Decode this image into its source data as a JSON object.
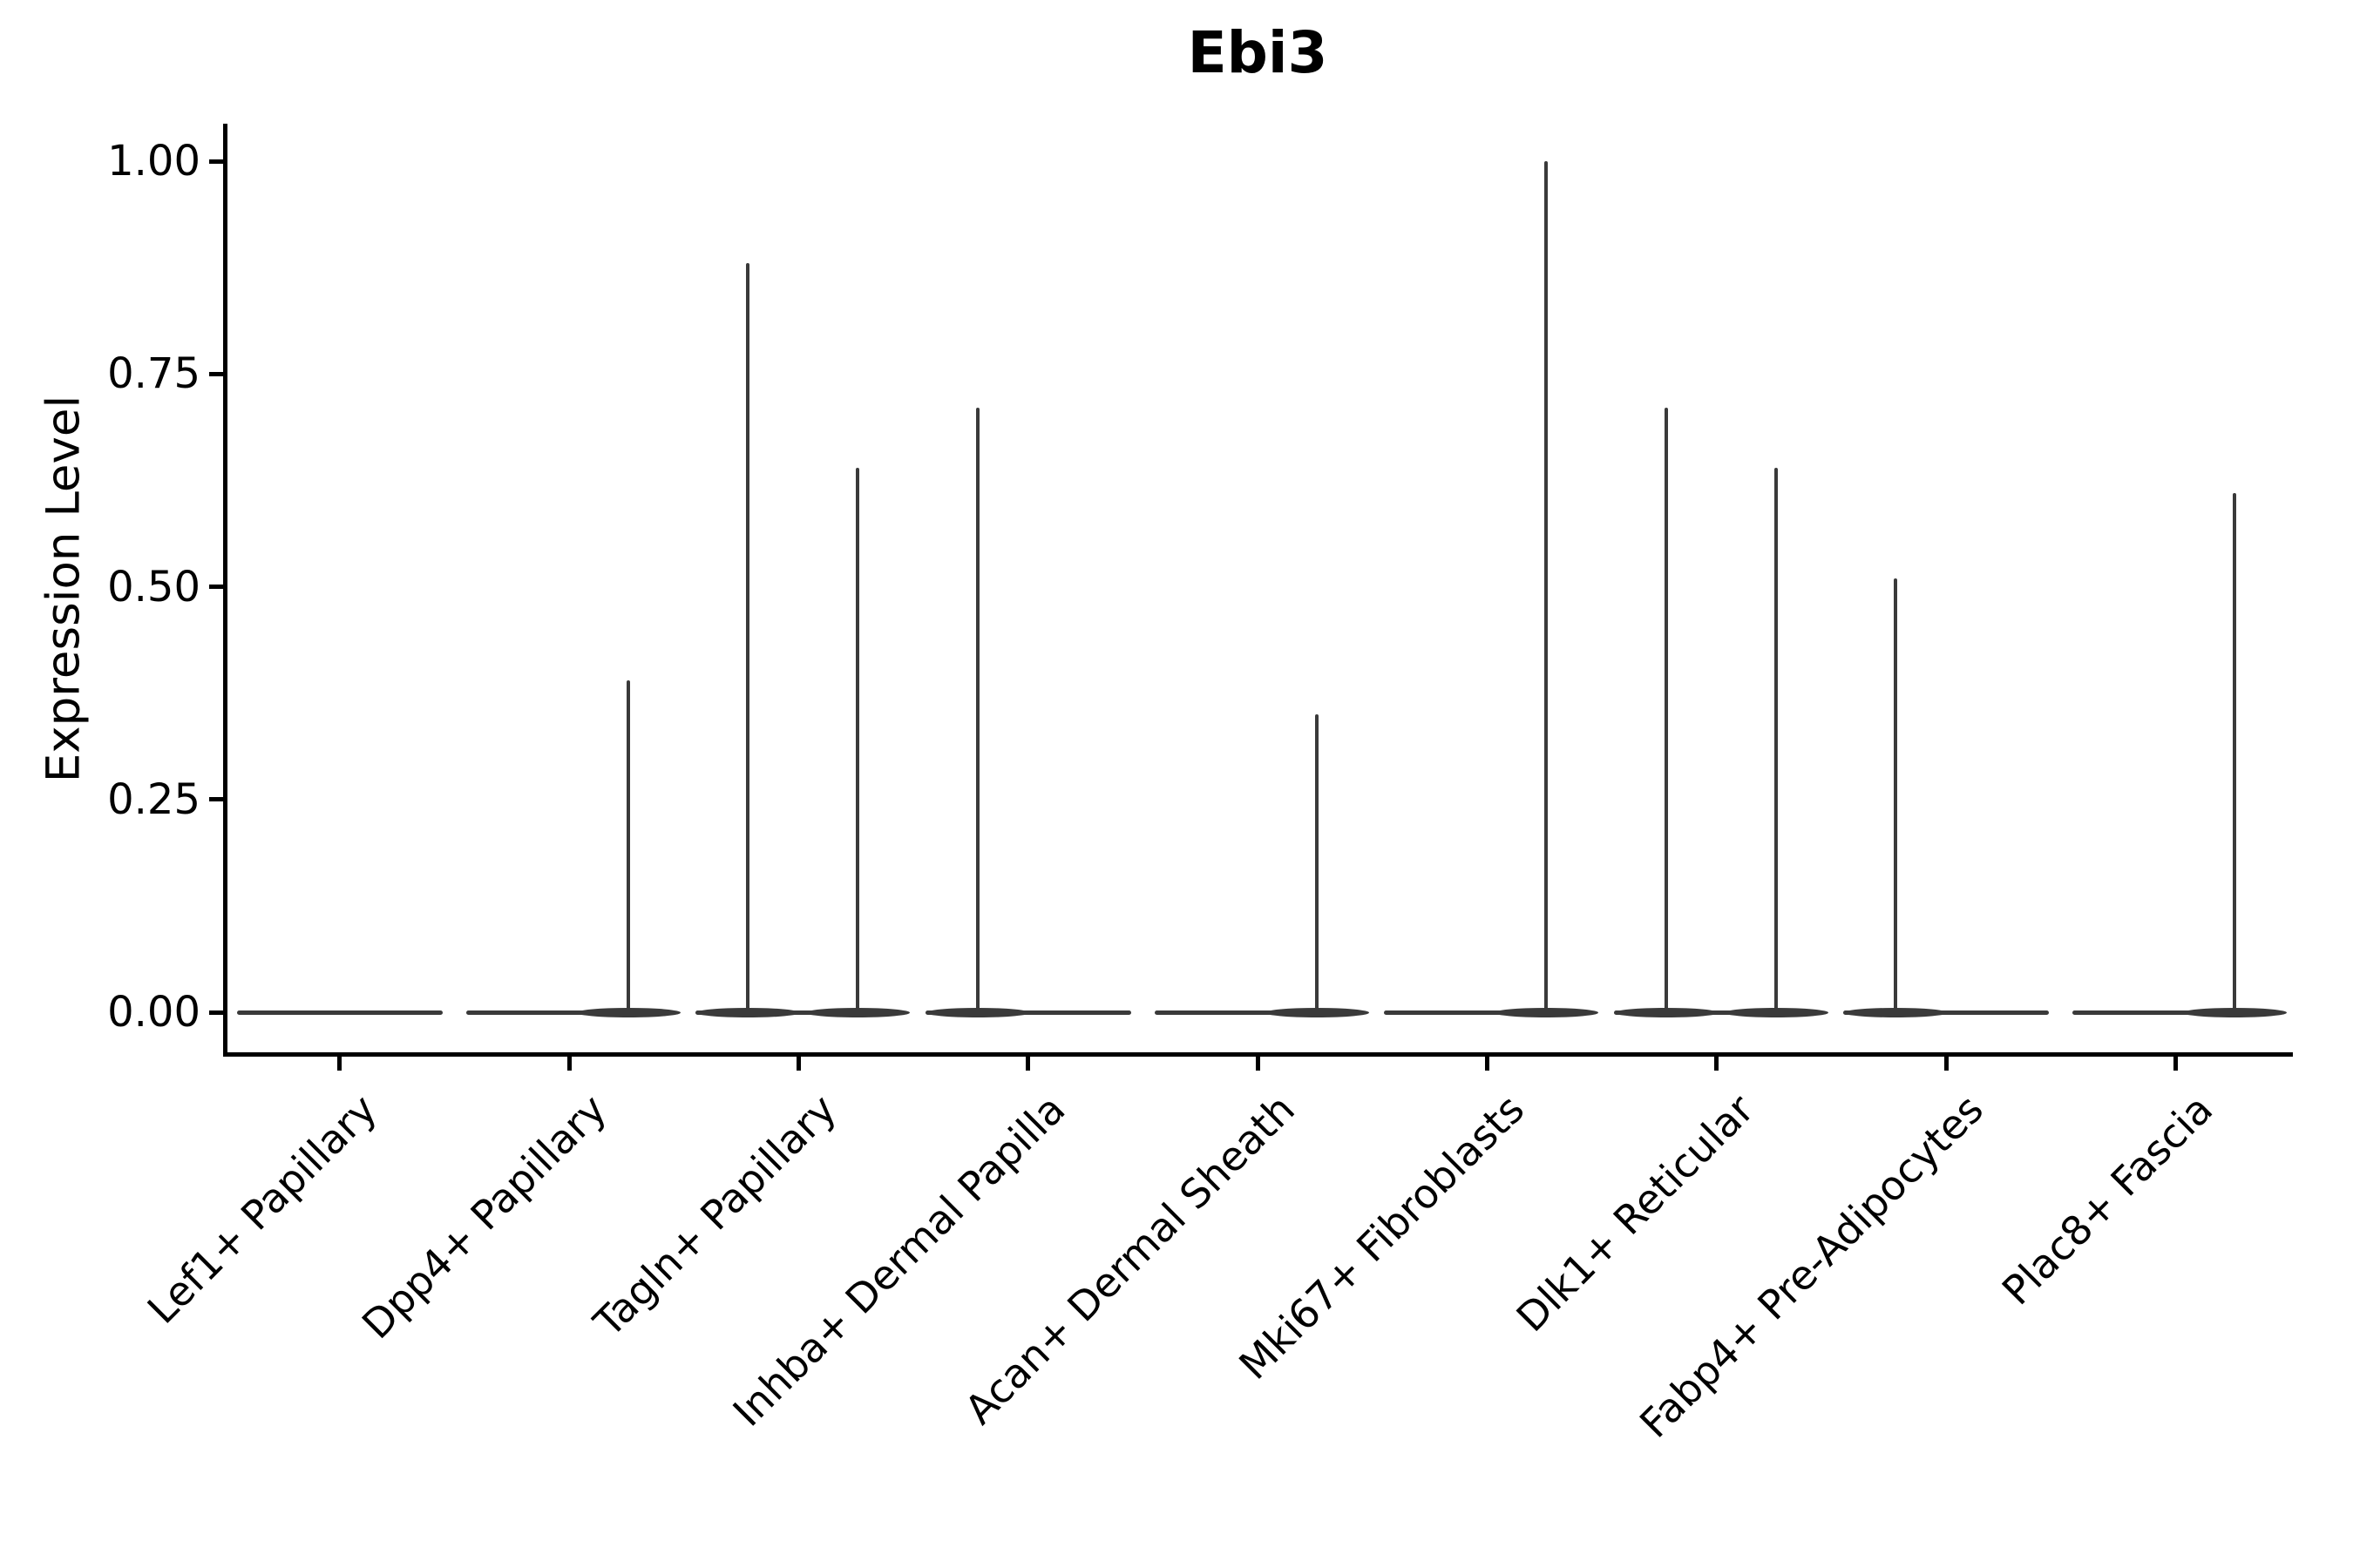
{
  "title": "Ebi3",
  "axes": {
    "y": {
      "label": "Expression Level",
      "ticks": [
        {
          "label": "1.00",
          "value": 1.0
        },
        {
          "label": "0.75",
          "value": 0.75
        },
        {
          "label": "0.50",
          "value": 0.5
        },
        {
          "label": "0.25",
          "value": 0.25
        },
        {
          "label": "0.00",
          "value": 0.0
        }
      ]
    },
    "x": {
      "categories": [
        "Lef1+ Papillary",
        "Dpp4+ Papillary",
        "Tagln+ Papillary",
        "Inhba+ Dermal Papilla",
        "Acan+ Dermal Sheath",
        "Mki67+ Fibroblasts",
        "Dlk1+ Reticular",
        "Fabp4+ Pre-Adipocytes",
        "Plac8+ Fascia"
      ]
    }
  },
  "chart_data": {
    "type": "violin",
    "title": "Ebi3",
    "xlabel": "",
    "ylabel": "Expression Level",
    "ylim": [
      0,
      1.045
    ],
    "grid": false,
    "legend": false,
    "categories": [
      "Lef1+ Papillary",
      "Dpp4+ Papillary",
      "Tagln+ Papillary",
      "Inhba+ Dermal Papilla",
      "Acan+ Dermal Sheath",
      "Mki67+ Fibroblasts",
      "Dlk1+ Reticular",
      "Fabp4+ Pre-Adipocytes",
      "Plac8+ Fascia"
    ],
    "description": "Violin plot of Ebi3 expression per fibroblast cluster; each violin is a flat band at 0 expression with thin spikes rising to the maximum expressing cell.",
    "series": [
      {
        "name": "Lef1+ Papillary",
        "baseline_value": 0,
        "spikes": []
      },
      {
        "name": "Dpp4+ Papillary",
        "baseline_value": 0,
        "spikes": [
          {
            "side": "right",
            "value": 0.39
          }
        ]
      },
      {
        "name": "Tagln+ Papillary",
        "baseline_value": 0,
        "spikes": [
          {
            "side": "left",
            "value": 0.88
          },
          {
            "side": "right",
            "value": 0.64
          }
        ]
      },
      {
        "name": "Inhba+ Dermal Papilla",
        "baseline_value": 0,
        "spikes": [
          {
            "side": "left",
            "value": 0.71
          }
        ]
      },
      {
        "name": "Acan+ Dermal Sheath",
        "baseline_value": 0,
        "spikes": [
          {
            "side": "right",
            "value": 0.35
          }
        ]
      },
      {
        "name": "Mki67+ Fibroblasts",
        "baseline_value": 0,
        "spikes": [
          {
            "side": "right",
            "value": 1.0
          }
        ]
      },
      {
        "name": "Dlk1+ Reticular",
        "baseline_value": 0,
        "spikes": [
          {
            "side": "left",
            "value": 0.71
          },
          {
            "side": "right",
            "value": 0.64
          }
        ]
      },
      {
        "name": "Fabp4+ Pre-Adipocytes",
        "baseline_value": 0,
        "spikes": [
          {
            "side": "left",
            "value": 0.51
          }
        ]
      },
      {
        "name": "Plac8+ Fascia",
        "baseline_value": 0,
        "spikes": [
          {
            "side": "right",
            "value": 0.61
          }
        ]
      }
    ]
  },
  "style": {
    "violin_color": "#3a3a3a",
    "axis_color": "#000000",
    "text_color": "#000000",
    "background": "#ffffff"
  }
}
